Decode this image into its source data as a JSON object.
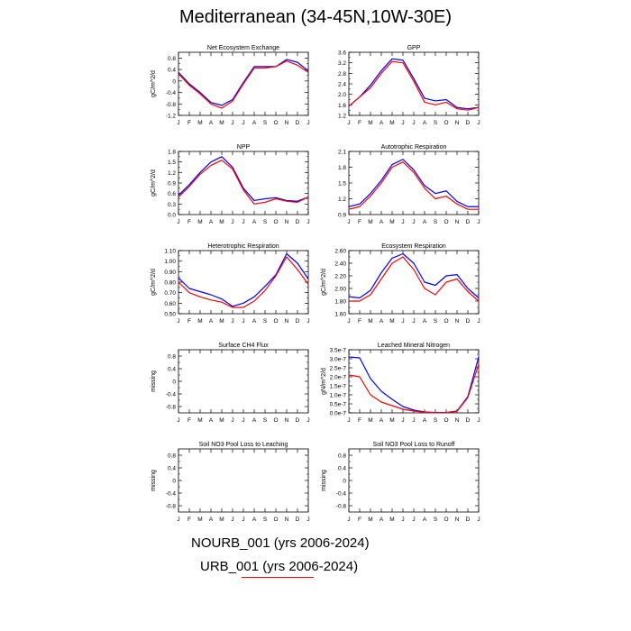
{
  "title": "Mediterranean (34-45N,10W-30E)",
  "legend": {
    "entries": [
      {
        "label": "NOURB_001 (yrs 2006-2024)",
        "color": "#0000ff"
      },
      {
        "label": "URB_001 (yrs 2006-2024)",
        "color": "#ff0000"
      }
    ]
  },
  "colors": {
    "series_a": "#0000ff",
    "series_b": "#ff0000",
    "axis": "#000000"
  },
  "months": [
    "J",
    "F",
    "M",
    "A",
    "M",
    "J",
    "J",
    "A",
    "S",
    "O",
    "N",
    "D",
    "J"
  ],
  "chart_data": [
    {
      "type": "line",
      "title": "Net Ecosystem Exchange",
      "ylabel": "gC/m^2/d",
      "ylim": [
        -1.2,
        1.0
      ],
      "yticks": [
        0.8,
        0.4,
        0.0,
        -0.4,
        -0.8,
        -1.2
      ],
      "ytick_labels": [
        "0.8",
        "0.4",
        "0",
        "-0.4",
        "-0.8",
        "-1.2"
      ],
      "series": [
        {
          "name": "NOURB_001",
          "values": [
            0.3,
            -0.1,
            -0.4,
            -0.75,
            -0.85,
            -0.65,
            -0.05,
            0.5,
            0.5,
            0.5,
            0.75,
            0.65,
            0.35
          ]
        },
        {
          "name": "URB_001",
          "values": [
            0.25,
            -0.15,
            -0.45,
            -0.8,
            -0.95,
            -0.7,
            -0.1,
            0.45,
            0.45,
            0.5,
            0.7,
            0.55,
            0.3
          ]
        }
      ]
    },
    {
      "type": "line",
      "title": "GPP",
      "ylabel": "",
      "ylim": [
        1.2,
        3.6
      ],
      "yticks": [
        3.6,
        3.2,
        2.8,
        2.4,
        2.0,
        1.6,
        1.2
      ],
      "ytick_labels": [
        "3.6",
        "3.2",
        "2.8",
        "2.4",
        "2.0",
        "1.6",
        "1.2"
      ],
      "series": [
        {
          "name": "NOURB_001",
          "values": [
            1.55,
            1.9,
            2.35,
            2.9,
            3.35,
            3.3,
            2.6,
            1.85,
            1.75,
            1.8,
            1.5,
            1.45,
            1.5
          ]
        },
        {
          "name": "URB_001",
          "values": [
            1.55,
            1.9,
            2.25,
            2.8,
            3.25,
            3.2,
            2.5,
            1.7,
            1.6,
            1.7,
            1.45,
            1.4,
            1.5
          ]
        }
      ]
    },
    {
      "type": "line",
      "title": "NPP",
      "ylabel": "gC/m^2/d",
      "ylim": [
        0.0,
        1.8
      ],
      "yticks": [
        1.8,
        1.5,
        1.2,
        0.9,
        0.6,
        0.3,
        0.0
      ],
      "ytick_labels": [
        "1.8",
        "1.5",
        "1.2",
        "0.9",
        "0.6",
        "0.3",
        "0.0"
      ],
      "series": [
        {
          "name": "NOURB_001",
          "values": [
            0.55,
            0.85,
            1.2,
            1.5,
            1.65,
            1.35,
            0.75,
            0.4,
            0.45,
            0.48,
            0.4,
            0.38,
            0.5
          ]
        },
        {
          "name": "URB_001",
          "values": [
            0.5,
            0.8,
            1.15,
            1.4,
            1.55,
            1.3,
            0.7,
            0.3,
            0.35,
            0.45,
            0.38,
            0.35,
            0.5
          ]
        }
      ]
    },
    {
      "type": "line",
      "title": "Autotrophic Respiration",
      "ylabel": "",
      "ylim": [
        0.9,
        2.1
      ],
      "yticks": [
        2.1,
        1.8,
        1.5,
        1.2,
        0.9
      ],
      "ytick_labels": [
        "2.1",
        "1.8",
        "1.5",
        "1.2",
        "0.9"
      ],
      "series": [
        {
          "name": "NOURB_001",
          "values": [
            1.05,
            1.1,
            1.3,
            1.55,
            1.85,
            1.95,
            1.75,
            1.45,
            1.3,
            1.35,
            1.15,
            1.05,
            1.05
          ]
        },
        {
          "name": "URB_001",
          "values": [
            1.0,
            1.05,
            1.25,
            1.5,
            1.8,
            1.9,
            1.7,
            1.4,
            1.2,
            1.25,
            1.1,
            1.0,
            1.0
          ]
        }
      ]
    },
    {
      "type": "line",
      "title": "Heterotrophic Respiration",
      "ylabel": "gC/m^2/d",
      "ylim": [
        0.5,
        1.1
      ],
      "yticks": [
        1.1,
        1.0,
        0.9,
        0.8,
        0.7,
        0.6,
        0.5
      ],
      "ytick_labels": [
        "1.10",
        "1.00",
        "0.90",
        "0.80",
        "0.70",
        "0.60",
        "0.50"
      ],
      "series": [
        {
          "name": "NOURB_001",
          "values": [
            0.84,
            0.74,
            0.71,
            0.68,
            0.64,
            0.57,
            0.6,
            0.66,
            0.76,
            0.87,
            1.07,
            0.98,
            0.83
          ]
        },
        {
          "name": "URB_001",
          "values": [
            0.8,
            0.7,
            0.66,
            0.63,
            0.61,
            0.56,
            0.56,
            0.62,
            0.72,
            0.86,
            1.04,
            0.92,
            0.78
          ]
        }
      ]
    },
    {
      "type": "line",
      "title": "Ecosystem Respiration",
      "ylabel": "gC/m^2/d",
      "ylim": [
        1.6,
        2.6
      ],
      "yticks": [
        2.6,
        2.4,
        2.2,
        2.0,
        1.8,
        1.6
      ],
      "ytick_labels": [
        "2.60",
        "2.40",
        "2.20",
        "2.00",
        "1.80",
        "1.60"
      ],
      "series": [
        {
          "name": "NOURB_001",
          "values": [
            1.87,
            1.85,
            1.97,
            2.25,
            2.48,
            2.55,
            2.4,
            2.1,
            2.05,
            2.2,
            2.22,
            2.0,
            1.85
          ]
        },
        {
          "name": "URB_001",
          "values": [
            1.8,
            1.8,
            1.9,
            2.15,
            2.4,
            2.5,
            2.3,
            2.0,
            1.9,
            2.1,
            2.15,
            1.95,
            1.8
          ]
        }
      ]
    },
    {
      "type": "line",
      "title": "Surface CH4 Flux",
      "ylabel": "missing",
      "ylim": [
        -1.0,
        1.0
      ],
      "yticks": [
        0.8,
        0.4,
        0.0,
        -0.4,
        -0.8
      ],
      "ytick_labels": [
        "0.8",
        "0.4",
        "0",
        "-0.4",
        "-0.8"
      ],
      "series": []
    },
    {
      "type": "line",
      "title": "Leached Mineral Nitrogen",
      "ylabel": "gN/m^2/d",
      "ylim": [
        0.0,
        3.5e-07
      ],
      "yticks": [
        3.5e-07,
        3e-07,
        2.5e-07,
        2e-07,
        1.5e-07,
        1e-07,
        5e-08,
        0.0
      ],
      "ytick_labels": [
        "3.5e-7",
        "3.0e-7",
        "2.5e-7",
        "2.0e-7",
        "1.5e-7",
        "1.0e-7",
        "0.5e-7",
        "0.0e-7"
      ],
      "series": [
        {
          "name": "NOURB_001",
          "values": [
            3.1e-07,
            3.05e-07,
            1.9e-07,
            1.2e-07,
            7.5e-08,
            3.5e-08,
            1.5e-08,
            5e-09,
            2e-09,
            2e-09,
            1e-08,
            9e-08,
            3.1e-07
          ]
        },
        {
          "name": "URB_001",
          "values": [
            2.1e-07,
            2e-07,
            1e-07,
            6e-08,
            4e-08,
            2e-08,
            1e-08,
            3e-09,
            1e-09,
            1e-09,
            8e-09,
            8.5e-08,
            2.7e-07
          ]
        }
      ]
    },
    {
      "type": "line",
      "title": "Soil NO3 Pool Loss to Leaching",
      "ylabel": "missing",
      "ylim": [
        -1.0,
        1.0
      ],
      "yticks": [
        0.8,
        0.4,
        0.0,
        -0.4,
        -0.8
      ],
      "ytick_labels": [
        "0.8",
        "0.4",
        "0",
        "-0.4",
        "-0.8"
      ],
      "series": []
    },
    {
      "type": "line",
      "title": "Soil NO3 Pool Loss to Runoff",
      "ylabel": "missing",
      "ylim": [
        -1.0,
        1.0
      ],
      "yticks": [
        0.8,
        0.4,
        0.0,
        -0.4,
        -0.8
      ],
      "ytick_labels": [
        "0.8",
        "0.4",
        "0",
        "-0.4",
        "-0.8"
      ],
      "series": []
    }
  ]
}
